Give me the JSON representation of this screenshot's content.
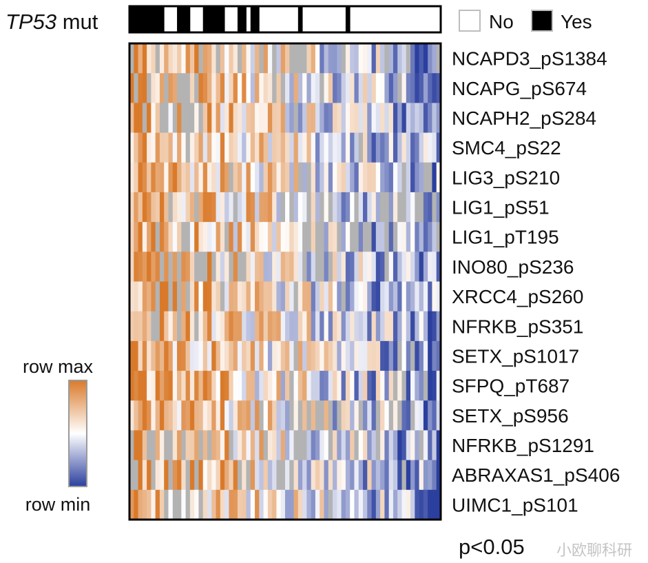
{
  "chart_data": {
    "type": "heatmap",
    "annotation": {
      "label_italic": "TP53",
      "label_rest": " mut",
      "legend": [
        {
          "label": "No",
          "color": "#ffffff"
        },
        {
          "label": "Yes",
          "color": "#000000"
        }
      ],
      "mutated_sample_columns": [
        0,
        1,
        2,
        3,
        4,
        5,
        6,
        7,
        11,
        12,
        13,
        17,
        18,
        19,
        20,
        21,
        25,
        26,
        28,
        29,
        39,
        50
      ]
    },
    "rows": [
      "NCAPD3_pS1384",
      "NCAPG_pS674",
      "NCAPH2_pS284",
      "SMC4_pS22",
      "LIG3_pS210",
      "LIG1_pS51",
      "LIG1_pT195",
      "INO80_pS236",
      "XRCC4_pS260",
      "NFRKB_pS351",
      "SETX_pS1017",
      "SFPQ_pT687",
      "SETX_pS956",
      "NFRKB_pS1291",
      "ABRAXAS1_pS406",
      "UIMC1_pS101"
    ],
    "n_samples": 72,
    "value_range": [
      -1,
      1
    ],
    "missing_color": "#b3b3b3",
    "color_scale": {
      "low": "#2b3f9e",
      "mid": "#ffffff",
      "high": "#d97a2b",
      "label_high": "row max",
      "label_low": "row min"
    },
    "significance_label": "p<0.05",
    "watermark": "小欧聊科研"
  }
}
